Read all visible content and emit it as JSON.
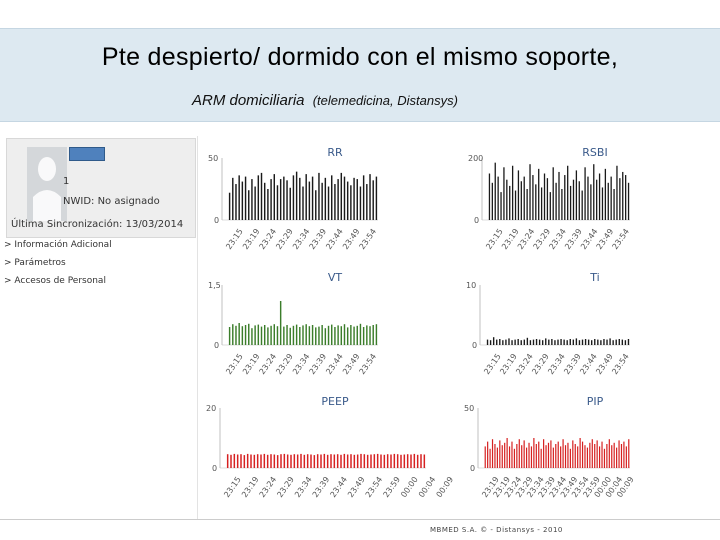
{
  "slide": {
    "title": "Pte despierto/ dormido con el mismo soporte,",
    "subtitle_main": "ARM domiciliaria",
    "subtitle_paren": "(telemedicina, Distansys)",
    "footer": "MBMED S.A. © - Distansys - 2010"
  },
  "profile": {
    "number": "1",
    "nwid": "NWID: No asignado",
    "last_sync": "Última Sincronización: 13/03/2014",
    "links": [
      "> Información Adicional",
      "> Parámetros",
      "> Accesos de Personal"
    ]
  },
  "colors": {
    "black_series": "#1a1a1a",
    "green_series": "#3b7d2a",
    "red_series": "#d62020",
    "title_blue": "#3a5a8a"
  },
  "chart_data": [
    {
      "id": "rr",
      "type": "bar",
      "title": "RR",
      "ylim": [
        0,
        50
      ],
      "yticks": [
        "50",
        "0"
      ],
      "color": "#1a1a1a",
      "xticks": [
        "23:15",
        "23:19",
        "23:24",
        "23:29",
        "23:34",
        "23:39",
        "23:44",
        "23:49",
        "23:54"
      ],
      "values": [
        22,
        34,
        29,
        36,
        31,
        35,
        24,
        33,
        27,
        36,
        38,
        30,
        25,
        33,
        37,
        28,
        33,
        35,
        32,
        26,
        36,
        39,
        34,
        27,
        37,
        31,
        35,
        24,
        38,
        30,
        34,
        27,
        36,
        29,
        33,
        38,
        35,
        31,
        28,
        34,
        33,
        27,
        36,
        29,
        37,
        32,
        35
      ]
    },
    {
      "id": "rsbi",
      "type": "bar",
      "title": "RSBI",
      "ylim": [
        0,
        200
      ],
      "yticks": [
        "200",
        "0"
      ],
      "color": "#1a1a1a",
      "xticks": [
        "23:15",
        "23:19",
        "23:24",
        "23:29",
        "23:34",
        "23:39",
        "23:44",
        "23:49",
        "23:54"
      ],
      "values": [
        150,
        120,
        185,
        140,
        90,
        170,
        130,
        110,
        175,
        95,
        160,
        125,
        140,
        100,
        180,
        145,
        115,
        165,
        105,
        150,
        135,
        90,
        170,
        120,
        155,
        100,
        145,
        175,
        110,
        130,
        160,
        125,
        95,
        170,
        140,
        115,
        180,
        130,
        150,
        105,
        165,
        120,
        140,
        100,
        175,
        135,
        155,
        145,
        120
      ]
    },
    {
      "id": "vt",
      "type": "bar",
      "title": "VT",
      "ylim": [
        0,
        1.5
      ],
      "yticks": [
        "1,5",
        "0"
      ],
      "color": "#3b7d2a",
      "xticks": [
        "23:15",
        "23:19",
        "23:24",
        "23:29",
        "23:34",
        "23:39",
        "23:44",
        "23:49",
        "23:54"
      ],
      "values": [
        0.45,
        0.52,
        0.48,
        0.55,
        0.47,
        0.5,
        0.53,
        0.42,
        0.49,
        0.51,
        0.46,
        0.5,
        0.44,
        0.48,
        0.52,
        0.47,
        1.1,
        0.46,
        0.5,
        0.43,
        0.48,
        0.51,
        0.45,
        0.49,
        0.52,
        0.47,
        0.5,
        0.44,
        0.46,
        0.5,
        0.42,
        0.48,
        0.51,
        0.45,
        0.49,
        0.47,
        0.52,
        0.44,
        0.5,
        0.46,
        0.48,
        0.53,
        0.45,
        0.49,
        0.47,
        0.5,
        0.52
      ]
    },
    {
      "id": "ti",
      "type": "bar",
      "title": "Ti",
      "ylim": [
        0,
        10
      ],
      "yticks": [
        "10",
        "0"
      ],
      "color": "#1a1a1a",
      "xticks": [
        "23:15",
        "23:19",
        "23:24",
        "23:29",
        "23:34",
        "23:39",
        "23:44",
        "23:49",
        "23:54"
      ],
      "values": [
        0.9,
        0.8,
        1.3,
        0.9,
        1.0,
        0.8,
        0.9,
        1.1,
        0.8,
        0.9,
        1.0,
        0.8,
        0.9,
        1.2,
        0.8,
        0.9,
        1.0,
        0.9,
        0.8,
        1.1,
        0.9,
        1.0,
        0.8,
        0.9,
        1.0,
        0.9,
        0.8,
        1.0,
        0.9,
        1.1,
        0.8,
        0.9,
        1.0,
        0.9,
        0.8,
        1.0,
        0.9,
        0.8,
        1.0,
        0.9,
        1.1,
        0.8,
        0.9,
        1.0,
        0.9,
        0.8,
        1.0
      ]
    },
    {
      "id": "peep",
      "type": "bar",
      "title": "PEEP",
      "ylim": [
        0,
        20
      ],
      "yticks": [
        "20",
        "0"
      ],
      "color": "#d62020",
      "xticks": [
        "23:15",
        "23:19",
        "23:24",
        "23:29",
        "23:34",
        "23:39",
        "23:44",
        "23:49",
        "23:54",
        "23:59",
        "00:00",
        "00:04",
        "00:09"
      ],
      "values": [
        4.6,
        4.4,
        4.7,
        4.5,
        4.6,
        4.3,
        4.7,
        4.5,
        4.4,
        4.6,
        4.5,
        4.7,
        4.4,
        4.6,
        4.5,
        4.3,
        4.6,
        4.7,
        4.5,
        4.4,
        4.6,
        4.5,
        4.7,
        4.4,
        4.6,
        4.5,
        4.3,
        4.6,
        4.5,
        4.7,
        4.4,
        4.6,
        4.5,
        4.6,
        4.4,
        4.7,
        4.5,
        4.6,
        4.4,
        4.5,
        4.7,
        4.6,
        4.4,
        4.5,
        4.6,
        4.7,
        4.5,
        4.4,
        4.6,
        4.5,
        4.7,
        4.6,
        4.4,
        4.5,
        4.6,
        4.5,
        4.7,
        4.4,
        4.6,
        4.5
      ]
    },
    {
      "id": "pip",
      "type": "bar",
      "title": "PIP",
      "ylim": [
        0,
        50
      ],
      "yticks": [
        "50",
        "0"
      ],
      "color": "#d62020",
      "xticks": [
        "23:19",
        "23:19",
        "23:24",
        "23:29",
        "23:34",
        "23:39",
        "23:44",
        "23:49",
        "23:54",
        "23:59",
        "00:00",
        "00:04",
        "00:09"
      ],
      "values": [
        18,
        22,
        16,
        24,
        20,
        17,
        23,
        19,
        21,
        25,
        18,
        22,
        16,
        20,
        24,
        19,
        23,
        17,
        21,
        18,
        25,
        20,
        22,
        16,
        24,
        19,
        21,
        23,
        17,
        20,
        22,
        18,
        24,
        19,
        21,
        16,
        23,
        20,
        18,
        25,
        22,
        19,
        17,
        21,
        24,
        20,
        23,
        18,
        22,
        16,
        20,
        24,
        19,
        21,
        17,
        23,
        20,
        22,
        18,
        24
      ]
    }
  ]
}
